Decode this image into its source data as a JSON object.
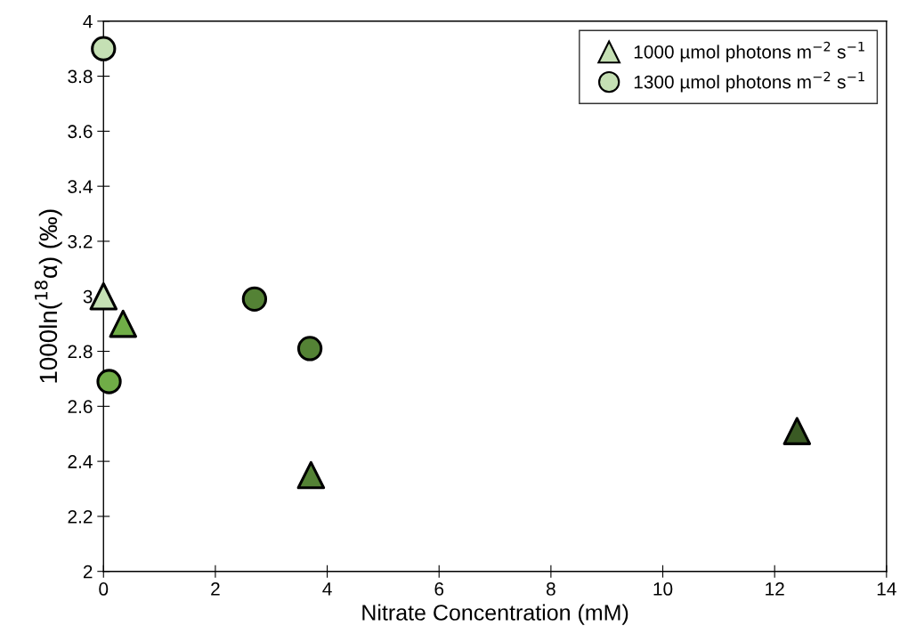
{
  "chart_data": {
    "type": "scatter",
    "xlabel": "Nitrate Concentration (mM)",
    "ylabel": "1000ln($^{18}$α) (‰)",
    "xlim": [
      0,
      14
    ],
    "xticks": [
      0,
      2,
      4,
      6,
      8,
      10,
      12,
      14
    ],
    "ylim": [
      2,
      4
    ],
    "yticks": [
      {
        "value": 2,
        "label": "2"
      },
      2.2,
      2.4,
      2.6,
      2.8,
      {
        "value": 3,
        "label": "3"
      },
      3.2,
      3.4,
      3.6,
      3.8,
      {
        "value": 4,
        "label": "4"
      }
    ],
    "grid": false,
    "legend": "top right",
    "series": [
      {
        "name": "1000 µmol photons m$^{−2}$ s$^{−1}$",
        "marker": "triangle",
        "x": [
          0,
          0.35,
          3.71,
          12.4
        ],
        "values": [
          3.0,
          2.9,
          2.35,
          2.51
        ],
        "colors": [
          "#c5e0b4",
          "#70ad47",
          "#548235",
          "#3a5a24"
        ]
      },
      {
        "name": "1300 µmol photons m$^{−2}$ s$^{−1}$",
        "marker": "circle",
        "x": [
          0,
          0.1,
          2.7,
          3.69
        ],
        "values": [
          3.9,
          2.69,
          2.99,
          2.81
        ],
        "colors": [
          "#c5e0b4",
          "#70ad47",
          "#548235",
          "#548235"
        ]
      }
    ]
  }
}
